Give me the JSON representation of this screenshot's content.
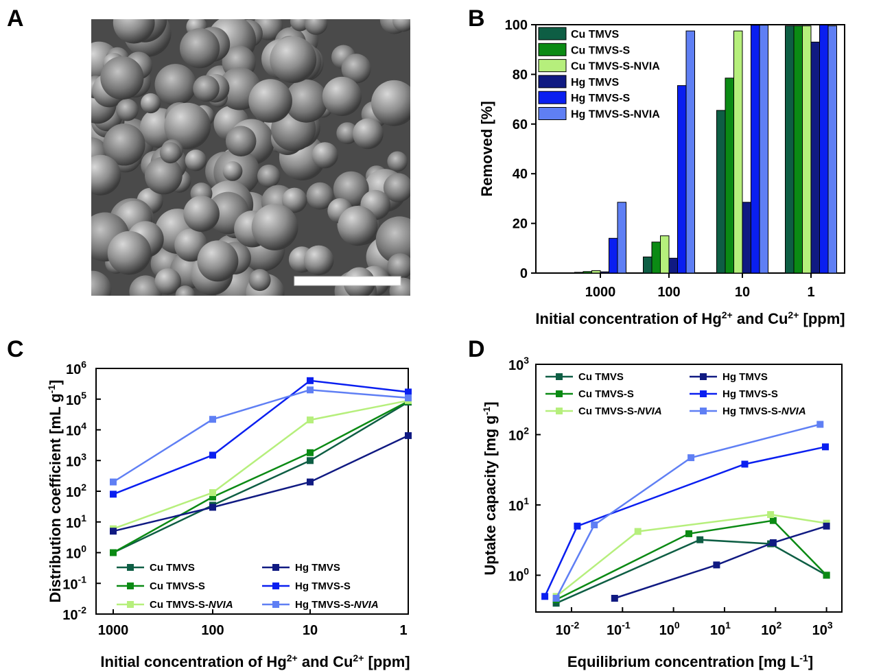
{
  "panels": {
    "a": "A",
    "b": "B",
    "c": "C",
    "d": "D"
  },
  "colors": {
    "cu_tmvs": "#0e5e44",
    "cu_tmvs_s": "#0b8a14",
    "cu_tmvs_s_nvia": "#b6ef7c",
    "hg_tmvs": "#101a82",
    "hg_tmvs_s": "#0a1ff0",
    "hg_tmvs_s_nvia": "#5f7ff4"
  },
  "chart_data": [
    {
      "panel": "A",
      "type": "image",
      "description_visible": ""
    },
    {
      "panel": "B",
      "type": "bar",
      "categories": [
        "1000",
        "100",
        "10",
        "1"
      ],
      "series": [
        {
          "name": "Cu TMVS",
          "values": [
            0.3,
            6.5,
            65.5,
            99.5
          ]
        },
        {
          "name": "Cu TMVS-S",
          "values": [
            0.6,
            12.5,
            78.5,
            99.5
          ]
        },
        {
          "name": "Cu TMVS-S-NVIA",
          "values": [
            1.0,
            15.0,
            97.5,
            99.5
          ]
        },
        {
          "name": "Hg TMVS",
          "values": [
            0.5,
            6.0,
            28.5,
            93.0
          ]
        },
        {
          "name": "Hg TMVS-S",
          "values": [
            14.0,
            75.5,
            99.8,
            99.9
          ]
        },
        {
          "name": "Hg TMVS-S-NVIA",
          "values": [
            28.5,
            97.5,
            99.8,
            99.5
          ]
        }
      ],
      "xlabel": "Initial concentration of Hg²⁺ and Cu²⁺ [ppm]",
      "ylabel": "Removed [%]",
      "ylim": [
        0,
        100
      ],
      "yticks": [
        "0",
        "20",
        "40",
        "60",
        "80",
        "100"
      ],
      "legend": "top-left"
    },
    {
      "panel": "C",
      "type": "line",
      "categories": [
        "1000",
        "100",
        "10",
        "1"
      ],
      "yscale": "log",
      "ylim": [
        0.01,
        1000000
      ],
      "ytick_exponents": [
        "-2",
        "-1",
        "0",
        "1",
        "2",
        "3",
        "4",
        "5",
        "6"
      ],
      "series": [
        {
          "name": "Cu TMVS",
          "values": [
            1,
            35,
            1000,
            80000
          ]
        },
        {
          "name": "Cu TMVS-S",
          "values": [
            1,
            65,
            1800,
            85000
          ]
        },
        {
          "name": "Cu TMVS-S-NVIA",
          "values": [
            6,
            90,
            21000,
            90000
          ]
        },
        {
          "name": "Hg TMVS",
          "values": [
            5,
            30,
            200,
            6500
          ]
        },
        {
          "name": "Hg TMVS-S",
          "values": [
            80,
            1500,
            400000,
            170000
          ]
        },
        {
          "name": "Hg TMVS-S-NVIA",
          "values": [
            200,
            22000,
            200000,
            110000
          ]
        }
      ],
      "xlabel": "Initial concentration of Hg²⁺ and Cu²⁺ [ppm]",
      "ylabel": "Distribution coefficient [mL g⁻¹]",
      "legend": "bottom-right"
    },
    {
      "panel": "D",
      "type": "line",
      "xscale": "log",
      "yscale": "log",
      "xlim": [
        0.002,
        2000
      ],
      "ylim": [
        0.3,
        1000
      ],
      "xtick_exponents": [
        "-2",
        "-1",
        "0",
        "1",
        "2",
        "3"
      ],
      "ytick_exponents": [
        "0",
        "1",
        "2",
        "3"
      ],
      "series": [
        {
          "name": "Cu TMVS",
          "x": [
            0.005,
            3.3,
            80,
            1000
          ],
          "y": [
            0.4,
            3.2,
            2.8,
            1.0
          ]
        },
        {
          "name": "Cu TMVS-S",
          "x": [
            0.005,
            2.0,
            90,
            1000
          ],
          "y": [
            0.45,
            3.9,
            6.0,
            1.0
          ]
        },
        {
          "name": "Cu TMVS-S-NVIA",
          "x": [
            0.005,
            0.2,
            80,
            1000
          ],
          "y": [
            0.5,
            4.2,
            7.3,
            5.5
          ]
        },
        {
          "name": "Hg TMVS",
          "x": [
            0.07,
            7,
            90,
            1000
          ],
          "y": [
            0.47,
            1.4,
            2.9,
            5.0
          ]
        },
        {
          "name": "Hg TMVS-S",
          "x": [
            0.003,
            0.013,
            25,
            950
          ],
          "y": [
            0.5,
            5.0,
            38,
            67
          ]
        },
        {
          "name": "Hg TMVS-S-NVIA",
          "x": [
            0.005,
            0.028,
            2.2,
            750
          ],
          "y": [
            0.47,
            5.2,
            47,
            140
          ]
        }
      ],
      "xlabel": "Equilibrium concentration [mg L⁻¹]",
      "ylabel": "Uptake capacity [mg g⁻¹]",
      "legend": "top"
    }
  ],
  "legend_labels": {
    "b": [
      "Cu TMVS",
      "Cu TMVS-S",
      "Cu TMVS-S-NVIA",
      "Hg TMVS",
      "Hg TMVS-S",
      "Hg TMVS-S-NVIA"
    ],
    "c_left": [
      "Cu TMVS",
      "Cu TMVS-S",
      "Cu TMVS-S-"
    ],
    "c_right": [
      "Hg TMVS",
      "Hg TMVS-S",
      "Hg TMVS-S-"
    ],
    "d_left": [
      "Cu TMVS",
      "Cu TMVS-S",
      "Cu TMVS-S-"
    ],
    "d_right": [
      "Hg TMVS",
      "Hg TMVS-S",
      "Hg TMVS-S-"
    ],
    "nvia_italic": "NVIA"
  }
}
